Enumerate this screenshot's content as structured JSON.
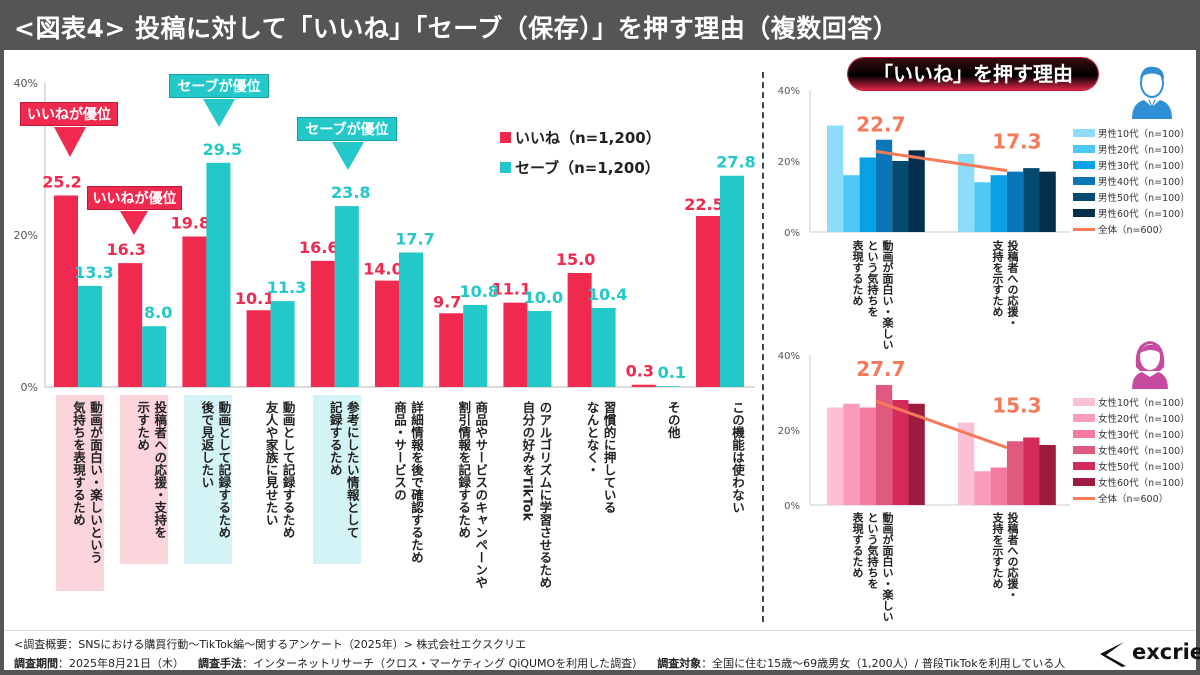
{
  "header": {
    "title": "<図表4> 投稿に対して「いいね」「セーブ（保存）」を押す理由（複数回答）"
  },
  "main_chart": {
    "legend": [
      "いいね（n=1,200）",
      "セーブ（n=1,200）"
    ],
    "callouts": [
      {
        "label": "いいねが優位",
        "type": "like"
      },
      {
        "label": "いいねが優位",
        "type": "like"
      },
      {
        "label": "セーブが優位",
        "type": "save"
      },
      {
        "label": "セーブが優位",
        "type": "save"
      }
    ],
    "y_ticks": [
      "0%",
      "20%",
      "40%"
    ]
  },
  "side_panel": {
    "title": "「いいね」を押す理由",
    "male": {
      "icon": "male-user-icon",
      "legend": [
        "男性10代（n=100）",
        "男性20代（n=100）",
        "男性30代（n=100）",
        "男性40代（n=100）",
        "男性50代（n=100）",
        "男性60代（n=100）",
        "全体（n=600）"
      ],
      "categories": [
        "動画が面白い・楽しい\nという気持ちを\n表現するため",
        "投稿者への応援・\n支持を示すため"
      ],
      "y_ticks": [
        "0%",
        "20%",
        "40%"
      ]
    },
    "female": {
      "icon": "female-user-icon",
      "legend": [
        "女性10代（n=100）",
        "女性20代（n=100）",
        "女性30代（n=100）",
        "女性40代（n=100）",
        "女性50代（n=100）",
        "女性60代（n=100）",
        "全体（n=600）"
      ],
      "categories": [
        "動画が面白い・楽しい\nという気持ちを\n表現するため",
        "投稿者への応援・\n支持を示すため"
      ],
      "y_ticks": [
        "0%",
        "20%",
        "40%"
      ]
    }
  },
  "footer": {
    "line1": "<調査概要：SNSにおける購買行動～TikTok編～関するアンケート（2025年）> 株式会社エクスクリエ",
    "period_label": "調査期間",
    "period_value": "：2025年8月21日（木）",
    "method_label": "調査手法",
    "method_value": "：インターネットリサーチ（クロス・マーケティング QiQUMOを利用した調査）",
    "target_label": "調査対象",
    "target_value": "：全国に住む15歳～69歳男女（1,200人）/ 普段TikTokを利用している人",
    "logo": "excrie"
  },
  "colors": {
    "like": "#f0294f",
    "save": "#24c8c8",
    "overall_line": "#f47a5a",
    "male": [
      "#8fdcfa",
      "#4fc8f5",
      "#0aa0e6",
      "#0a76b8",
      "#074a70",
      "#05304d"
    ],
    "female": [
      "#fcc0d6",
      "#f99bbb",
      "#f57aa0",
      "#e05a80",
      "#d42a5c",
      "#9c1c40"
    ]
  },
  "chart_data": [
    {
      "type": "bar",
      "title": "投稿に対して「いいね」「セーブ（保存）」を押す理由（複数回答）",
      "categories": [
        "動画が面白い・楽しいという気持ちを表現するため",
        "投稿者への応援・支持を示すため",
        "後で見返したい動画として記録するため",
        "友人や家族に見せたい動画として記録するため",
        "参考にしたい情報として記録するため",
        "商品・サービスの詳細情報を後で確認するため",
        "商品やサービスのキャンペーンや割引情報を記録するため",
        "自分の好みをTikTokのアルゴリズムに学習させるため",
        "なんとなく・習慣的に押している",
        "その他",
        "この機能は使わない"
      ],
      "category_labels": [
        "動画が面白い・楽しいという\n気持ちを表現するため",
        "投稿者への応援・支持を\n示すため",
        "動画として記録するため\n後で見返したい",
        "動画として記録するため\n友人や家族に見せたい",
        "参考にしたい情報として\n記録するため",
        "詳細情報を後で確認するため\n商品・サービスの",
        "商品やサービスのキャンペーンや\n割引情報を記録するため",
        "のアルゴリズムに学習させるため\n自分の好みをTikTok",
        "習慣的に押している\nなんとなく・",
        "その他",
        "この機能は使わない"
      ],
      "label_highlight": [
        "like",
        "like",
        "save",
        "none",
        "save",
        "none",
        "none",
        "none",
        "none",
        "none",
        "none"
      ],
      "series": [
        {
          "name": "いいね（n=1,200）",
          "values": [
            25.2,
            16.3,
            19.8,
            10.1,
            16.6,
            14.0,
            9.7,
            11.1,
            15.0,
            0.3,
            22.5
          ]
        },
        {
          "name": "セーブ（n=1,200）",
          "values": [
            13.3,
            8.0,
            29.5,
            11.3,
            23.8,
            17.7,
            10.8,
            10.0,
            10.4,
            0.1,
            27.8
          ]
        }
      ],
      "callout_targets": [
        0,
        1,
        2,
        4
      ],
      "xlabel": "",
      "ylabel": "",
      "ylim": [
        0,
        40
      ],
      "y_ticks": [
        0,
        20,
        40
      ],
      "legend_position": "top-right",
      "grid": false
    },
    {
      "type": "bar",
      "title": "「いいね」を押す理由（男性）",
      "categories": [
        "動画が面白い・楽しいという気持ちを表現するため",
        "投稿者への応援・支持を示すため"
      ],
      "series": [
        {
          "name": "男性10代（n=100）",
          "values": [
            30,
            22
          ]
        },
        {
          "name": "男性20代（n=100）",
          "values": [
            16,
            14
          ]
        },
        {
          "name": "男性30代（n=100）",
          "values": [
            21,
            16
          ]
        },
        {
          "name": "男性40代（n=100）",
          "values": [
            26,
            17
          ]
        },
        {
          "name": "男性50代（n=100）",
          "values": [
            20,
            18
          ]
        },
        {
          "name": "男性60代（n=100）",
          "values": [
            23,
            17
          ]
        }
      ],
      "overall_line": {
        "name": "全体（n=600）",
        "values": [
          22.7,
          17.3
        ]
      },
      "ylim": [
        0,
        40
      ],
      "y_ticks": [
        0,
        20,
        40
      ],
      "legend_position": "right",
      "grid": false
    },
    {
      "type": "bar",
      "title": "「いいね」を押す理由（女性）",
      "categories": [
        "動画が面白い・楽しいという気持ちを表現するため",
        "投稿者への応援・支持を示すため"
      ],
      "series": [
        {
          "name": "女性10代（n=100）",
          "values": [
            26,
            22
          ]
        },
        {
          "name": "女性20代（n=100）",
          "values": [
            27,
            9
          ]
        },
        {
          "name": "女性30代（n=100）",
          "values": [
            26,
            10
          ]
        },
        {
          "name": "女性40代（n=100）",
          "values": [
            32,
            17
          ]
        },
        {
          "name": "女性50代（n=100）",
          "values": [
            28,
            18
          ]
        },
        {
          "name": "女性60代（n=100）",
          "values": [
            27,
            16
          ]
        }
      ],
      "overall_line": {
        "name": "全体（n=600）",
        "values": [
          27.7,
          15.3
        ]
      },
      "ylim": [
        0,
        40
      ],
      "y_ticks": [
        0,
        20,
        40
      ],
      "legend_position": "right",
      "grid": false
    }
  ]
}
